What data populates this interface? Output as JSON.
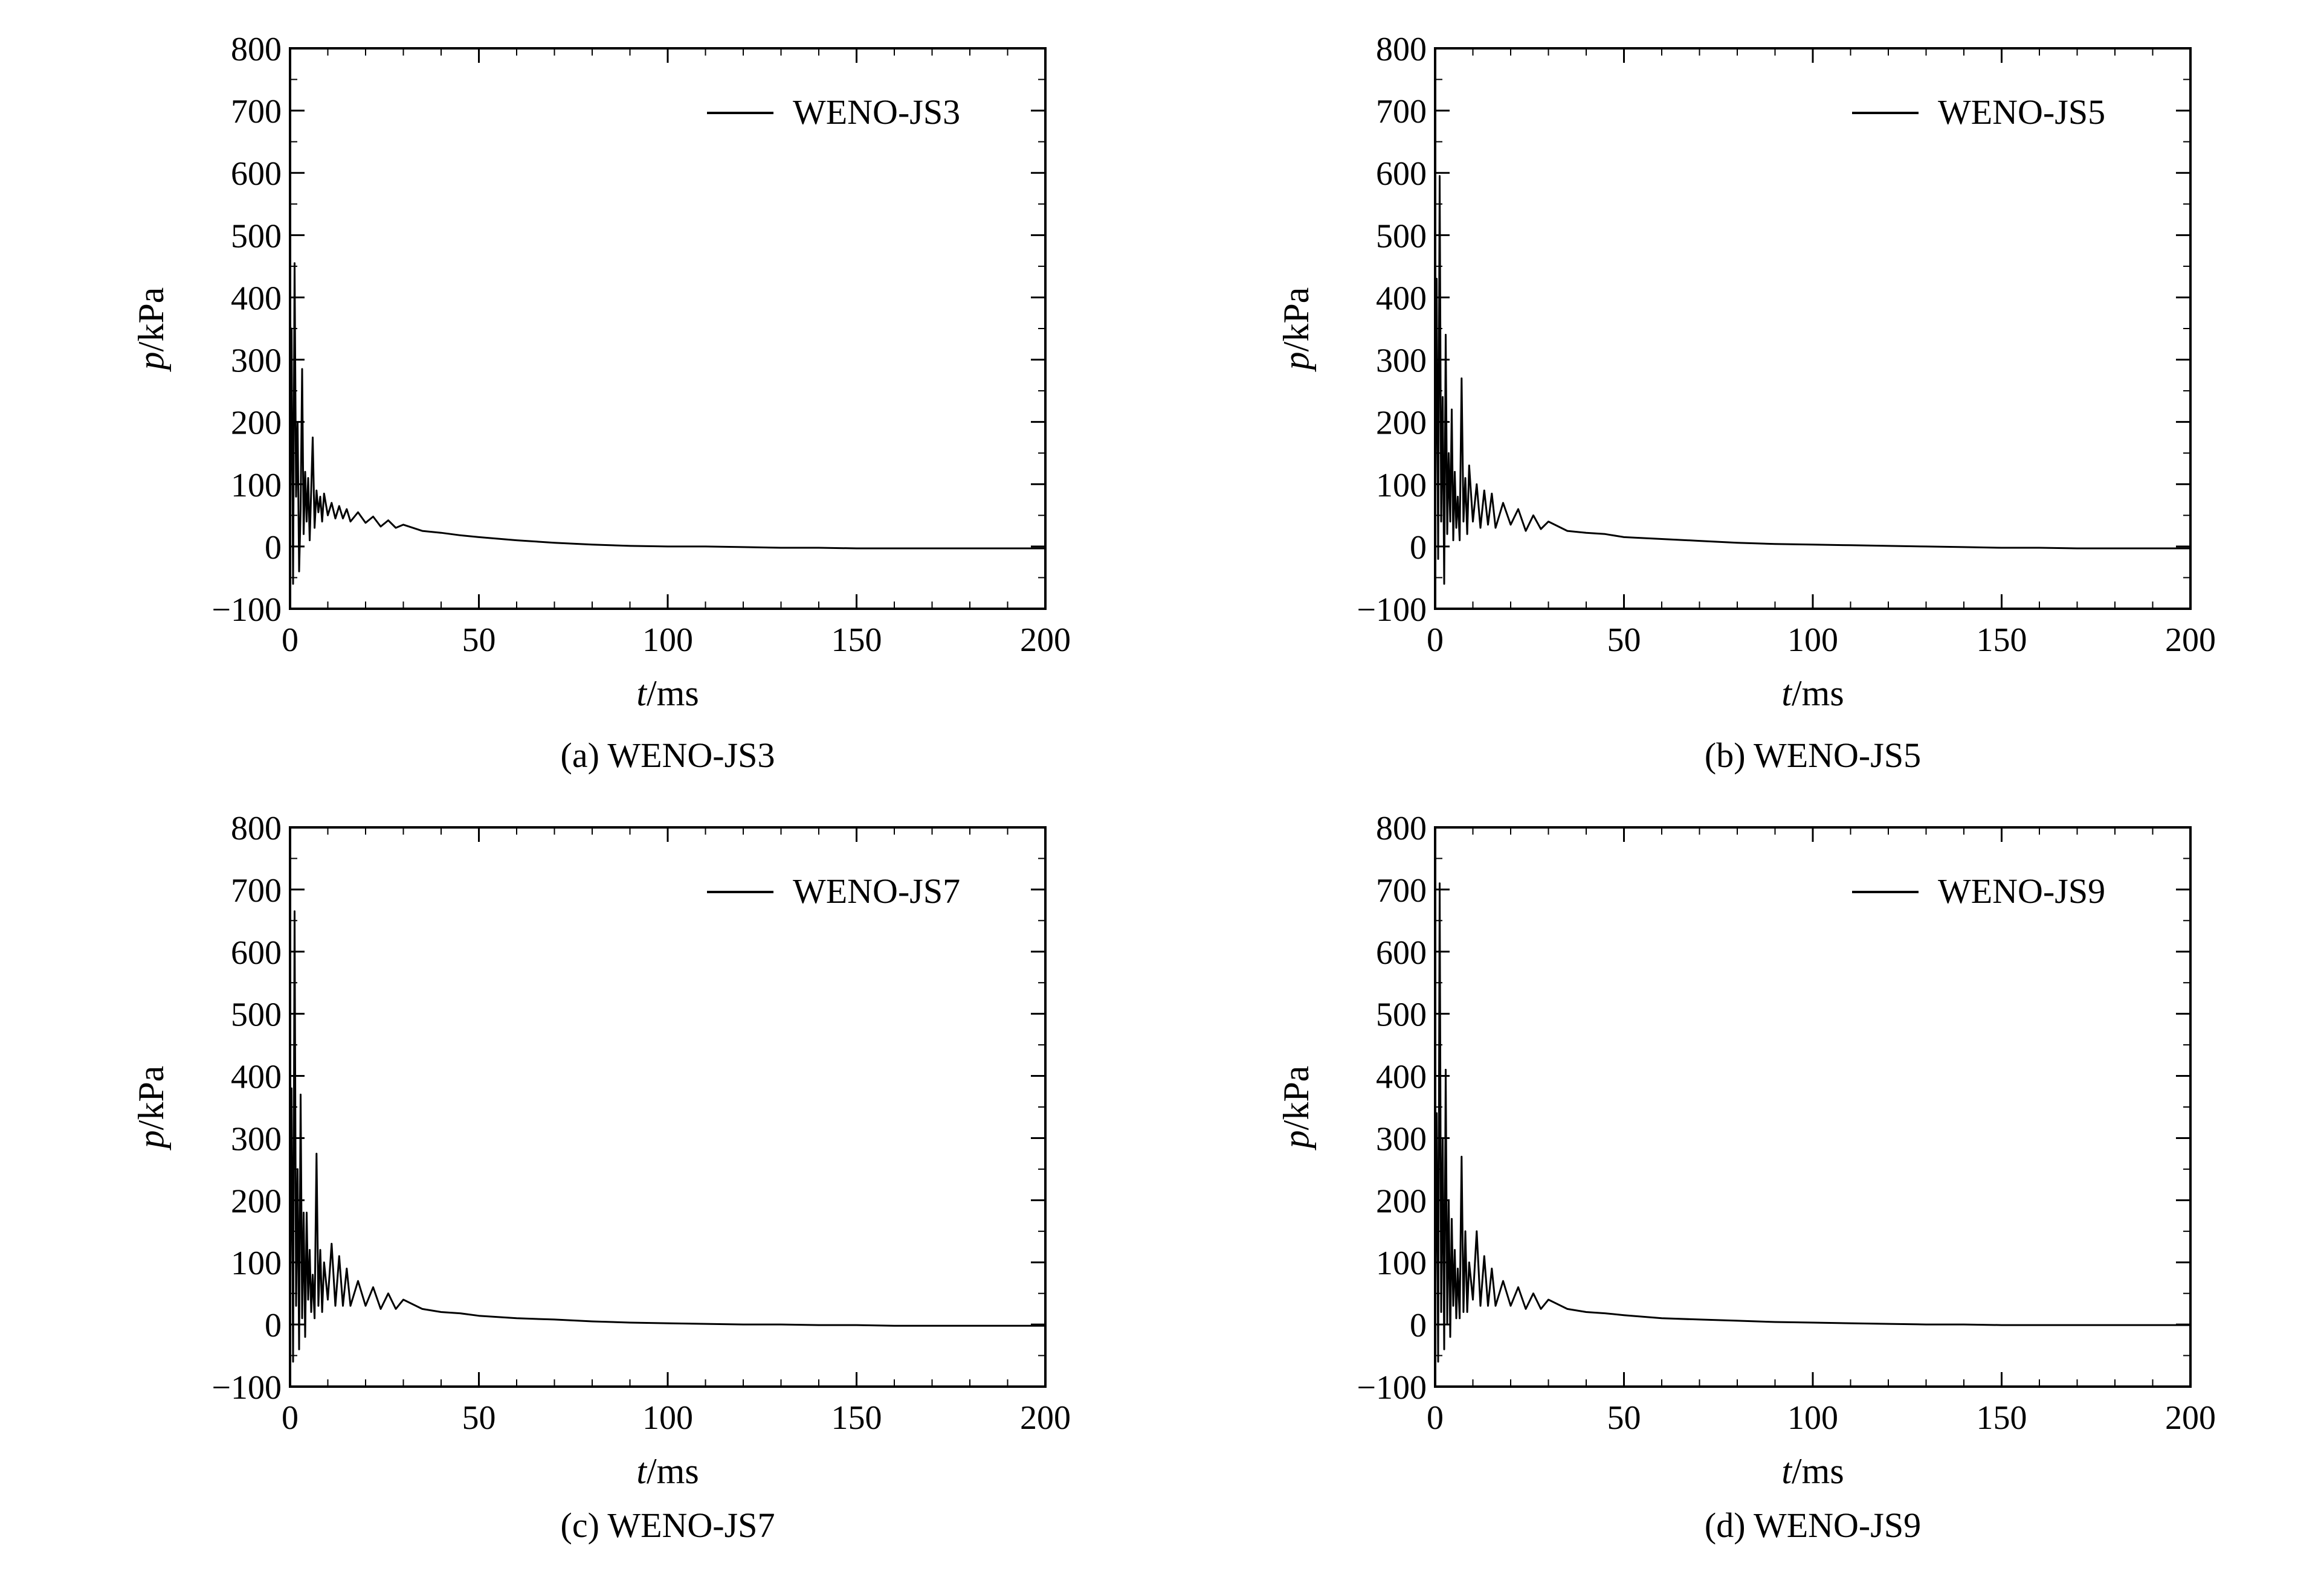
{
  "chart_data": [
    {
      "type": "line",
      "caption": "(a) WENO-JS3",
      "xlabel_var": "t",
      "xlabel_unit": "/ms",
      "ylabel_var": "p",
      "ylabel_unit": "/kPa",
      "xlim": [
        0,
        200
      ],
      "ylim": [
        -100,
        800
      ],
      "xticks": [
        "0",
        "50",
        "100",
        "150",
        "200"
      ],
      "yticks": [
        "800",
        "700",
        "600",
        "500",
        "400",
        "300",
        "200",
        "100",
        "0",
        "−100"
      ],
      "legend_position": "top-right",
      "series": [
        {
          "name": "WENO-JS3",
          "color": "#000000",
          "x": [
            0,
            0.4,
            0.8,
            1.2,
            1.6,
            2.0,
            2.4,
            2.8,
            3.2,
            3.6,
            4.0,
            4.4,
            4.8,
            5.2,
            5.6,
            6.0,
            6.5,
            7.0,
            7.5,
            8.0,
            8.5,
            9.0,
            10,
            11,
            12,
            13,
            14,
            15,
            16,
            18,
            20,
            22,
            24,
            26,
            28,
            30,
            35,
            40,
            45,
            50,
            60,
            70,
            80,
            90,
            100,
            110,
            120,
            130,
            140,
            150,
            160,
            170,
            180,
            190,
            200
          ],
          "y": [
            0,
            350,
            -60,
            455,
            80,
            200,
            -40,
            60,
            285,
            20,
            120,
            40,
            110,
            10,
            90,
            175,
            30,
            90,
            55,
            80,
            40,
            85,
            50,
            70,
            45,
            65,
            45,
            60,
            40,
            55,
            38,
            48,
            32,
            42,
            30,
            35,
            25,
            22,
            18,
            15,
            10,
            6,
            3,
            1,
            0,
            0,
            -1,
            -2,
            -2,
            -3,
            -3,
            -3,
            -3,
            -3,
            -3
          ]
        }
      ]
    },
    {
      "type": "line",
      "caption": "(b) WENO-JS5",
      "xlabel_var": "t",
      "xlabel_unit": "/ms",
      "ylabel_var": "p",
      "ylabel_unit": "/kPa",
      "xlim": [
        0,
        200
      ],
      "ylim": [
        -100,
        800
      ],
      "xticks": [
        "0",
        "50",
        "100",
        "150",
        "200"
      ],
      "yticks": [
        "800",
        "700",
        "600",
        "500",
        "400",
        "300",
        "200",
        "100",
        "0",
        "−100"
      ],
      "legend_position": "top-right",
      "series": [
        {
          "name": "WENO-JS5",
          "color": "#000000",
          "x": [
            0,
            0.4,
            0.8,
            1.2,
            1.6,
            2.0,
            2.4,
            2.8,
            3.2,
            3.6,
            4.0,
            4.4,
            4.8,
            5.2,
            5.6,
            6.0,
            6.5,
            7.0,
            7.5,
            8.0,
            8.5,
            9.0,
            10,
            11,
            12,
            13,
            14,
            15,
            16,
            18,
            20,
            22,
            24,
            26,
            28,
            30,
            35,
            40,
            45,
            50,
            60,
            70,
            80,
            90,
            100,
            110,
            120,
            130,
            140,
            150,
            160,
            170,
            180,
            190,
            200
          ],
          "y": [
            0,
            430,
            -20,
            595,
            40,
            240,
            -60,
            340,
            20,
            150,
            40,
            220,
            10,
            120,
            30,
            80,
            10,
            270,
            40,
            110,
            20,
            130,
            40,
            100,
            30,
            90,
            35,
            85,
            30,
            70,
            35,
            60,
            25,
            50,
            28,
            40,
            25,
            22,
            20,
            15,
            12,
            9,
            6,
            4,
            3,
            2,
            1,
            0,
            -1,
            -2,
            -2,
            -3,
            -3,
            -3,
            -3
          ]
        }
      ]
    },
    {
      "type": "line",
      "caption": "(c) WENO-JS7",
      "xlabel_var": "t",
      "xlabel_unit": "/ms",
      "ylabel_var": "p",
      "ylabel_unit": "/kPa",
      "xlim": [
        0,
        200
      ],
      "ylim": [
        -100,
        800
      ],
      "xticks": [
        "0",
        "50",
        "100",
        "150",
        "200"
      ],
      "yticks": [
        "800",
        "700",
        "600",
        "500",
        "400",
        "300",
        "200",
        "100",
        "0",
        "−100"
      ],
      "legend_position": "top-right",
      "series": [
        {
          "name": "WENO-JS7",
          "color": "#000000",
          "x": [
            0,
            0.4,
            0.8,
            1.2,
            1.6,
            2.0,
            2.4,
            2.8,
            3.2,
            3.6,
            4.0,
            4.4,
            4.8,
            5.2,
            5.6,
            6.0,
            6.5,
            7.0,
            7.5,
            8.0,
            8.5,
            9.0,
            10,
            11,
            12,
            13,
            14,
            15,
            16,
            18,
            20,
            22,
            24,
            26,
            28,
            30,
            35,
            40,
            45,
            50,
            60,
            70,
            80,
            90,
            100,
            110,
            120,
            130,
            140,
            150,
            160,
            170,
            180,
            190,
            200
          ],
          "y": [
            0,
            380,
            -60,
            665,
            30,
            250,
            -40,
            370,
            10,
            180,
            -20,
            180,
            40,
            120,
            20,
            80,
            10,
            275,
            30,
            120,
            20,
            100,
            40,
            130,
            30,
            110,
            30,
            90,
            30,
            70,
            30,
            60,
            25,
            50,
            25,
            40,
            25,
            20,
            18,
            14,
            10,
            8,
            5,
            3,
            2,
            1,
            0,
            0,
            -1,
            -1,
            -2,
            -2,
            -2,
            -2,
            -2
          ]
        }
      ]
    },
    {
      "type": "line",
      "caption": "(d) WENO-JS9",
      "xlabel_var": "t",
      "xlabel_unit": "/ms",
      "ylabel_var": "p",
      "ylabel_unit": "/kPa",
      "xlim": [
        0,
        200
      ],
      "ylim": [
        -100,
        800
      ],
      "xticks": [
        "0",
        "50",
        "100",
        "150",
        "200"
      ],
      "yticks": [
        "800",
        "700",
        "600",
        "500",
        "400",
        "300",
        "200",
        "100",
        "0",
        "−100"
      ],
      "legend_position": "top-right",
      "series": [
        {
          "name": "WENO-JS9",
          "color": "#000000",
          "x": [
            0,
            0.4,
            0.8,
            1.2,
            1.6,
            2.0,
            2.4,
            2.8,
            3.2,
            3.6,
            4.0,
            4.4,
            4.8,
            5.2,
            5.6,
            6.0,
            6.5,
            7.0,
            7.5,
            8.0,
            8.5,
            9.0,
            10,
            11,
            12,
            13,
            14,
            15,
            16,
            18,
            20,
            22,
            24,
            26,
            28,
            30,
            35,
            40,
            45,
            50,
            60,
            70,
            80,
            90,
            100,
            110,
            120,
            130,
            140,
            150,
            160,
            170,
            180,
            190,
            200
          ],
          "y": [
            0,
            340,
            -60,
            710,
            20,
            300,
            -40,
            410,
            0,
            200,
            -20,
            170,
            30,
            120,
            10,
            90,
            10,
            270,
            20,
            150,
            20,
            100,
            40,
            150,
            30,
            110,
            30,
            90,
            30,
            70,
            30,
            60,
            25,
            50,
            25,
            40,
            25,
            20,
            18,
            15,
            10,
            8,
            6,
            4,
            3,
            2,
            1,
            0,
            0,
            -1,
            -1,
            -1,
            -1,
            -1,
            -1
          ]
        }
      ]
    }
  ]
}
